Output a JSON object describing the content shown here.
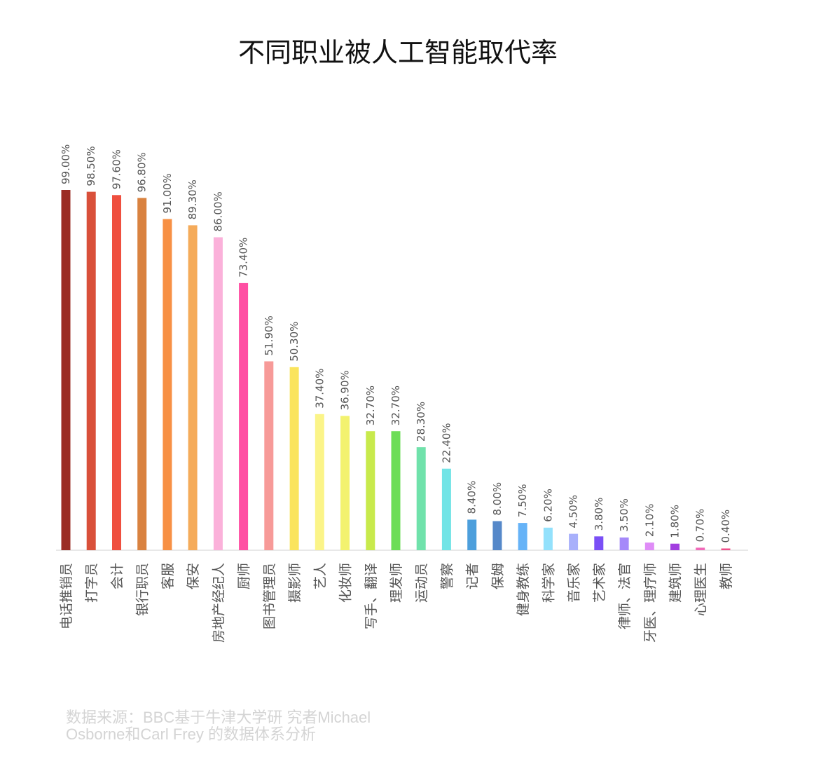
{
  "chart_data": {
    "type": "bar",
    "title": "不同职业被人工智能取代率",
    "categories": [
      "电话推销员",
      "打字员",
      "会计",
      "银行职员",
      "客服",
      "保安",
      "房地产经纪人",
      "厨师",
      "图书管理员",
      "摄影师",
      "艺人",
      "化妆师",
      "写手、翻译",
      "理发师",
      "运动员",
      "警察",
      "记者",
      "保姆",
      "健身教练",
      "科学家",
      "音乐家",
      "艺术家",
      "律师、法官",
      "牙医、理疗师",
      "建筑师",
      "心理医生",
      "教师"
    ],
    "values": [
      99.0,
      98.5,
      97.6,
      96.8,
      91.0,
      89.3,
      86.0,
      73.4,
      51.9,
      50.3,
      37.4,
      36.9,
      32.7,
      32.7,
      28.3,
      22.4,
      8.4,
      8.0,
      7.5,
      6.2,
      4.5,
      3.8,
      3.5,
      2.1,
      1.8,
      0.7,
      0.4
    ],
    "value_labels": [
      "99.00%",
      "98.50%",
      "97.60%",
      "96.80%",
      "91.00%",
      "89.30%",
      "86.00%",
      "73.40%",
      "51.90%",
      "50.30%",
      "37.40%",
      "36.90%",
      "32.70%",
      "32.70%",
      "28.30%",
      "22.40%",
      "8.40%",
      "8.00%",
      "7.50%",
      "6.20%",
      "4.50%",
      "3.80%",
      "3.50%",
      "2.10%",
      "1.80%",
      "0.70%",
      "0.40%"
    ],
    "colors": [
      "#9b2d24",
      "#d9503a",
      "#ef4f3f",
      "#d98240",
      "#f79044",
      "#f5ab5a",
      "#fbb1da",
      "#ff4fa3",
      "#f79a98",
      "#fae45d",
      "#fbf488",
      "#f3f26f",
      "#c8ea4c",
      "#6ddd58",
      "#70e2ab",
      "#72e4e6",
      "#4d9fdc",
      "#5588c9",
      "#66b3f7",
      "#93e1fc",
      "#a8b0fb",
      "#7a4ff6",
      "#a589f9",
      "#df8cf7",
      "#a23ee0",
      "#f06ab9",
      "#ef4f8a"
    ],
    "ylim": [
      0,
      100
    ],
    "grid": false,
    "legend": "none"
  },
  "source": {
    "line1": "数据来源：BBC基于牛津大学研   究者Michael",
    "line2": "Osborne和Carl Frey 的数据体系分析"
  }
}
